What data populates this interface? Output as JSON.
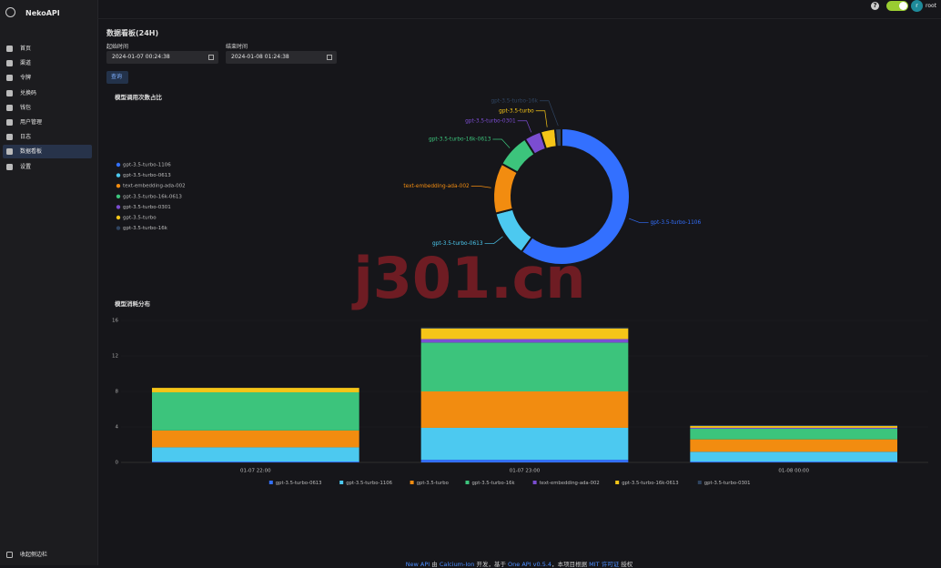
{
  "sidebar": {
    "brand": "NekoAPI",
    "menu": [
      "首页",
      "渠道",
      "令牌",
      "兑换码",
      "钱包",
      "用户管理",
      "日志",
      "数据看板",
      "设置"
    ],
    "active": 7,
    "collapse": "收起侧边栏"
  },
  "header": {
    "help": "?",
    "avatar": "r",
    "user": "root"
  },
  "page": {
    "title": "数据看板(24H)",
    "start_label": "起始时间",
    "start_value": "2024-01-07 00:24:38",
    "end_label": "结束时间",
    "end_value": "2024-01-08 01:24:38",
    "query": "查询"
  },
  "watermark": "j301.cn",
  "pie_chart": {
    "type": "pie",
    "title": "模型调用次数占比",
    "labels": [
      "gpt-3.5-turbo-1106",
      "gpt-3.5-turbo-0613",
      "text-embedding-ada-002",
      "gpt-3.5-turbo-16k-0613",
      "gpt-3.5-turbo-0301",
      "gpt-3.5-turbo",
      "gpt-3.5-turbo-16k"
    ],
    "values": [
      60,
      11,
      12,
      8,
      4,
      3.5,
      1.5
    ],
    "colors": [
      "#3370ff",
      "#4cc9f0",
      "#f28c10",
      "#3cc47c",
      "#7b4dd1",
      "#f5c518",
      "#2f4460"
    ]
  },
  "bar_chart": {
    "type": "bar",
    "title": "模型消耗分布",
    "stacked": true,
    "categories": [
      "01-07 22:00",
      "01-07 23:00",
      "01-08 00:00"
    ],
    "ylim": [
      0,
      16
    ],
    "yticks": [
      0,
      4,
      8,
      12,
      16
    ],
    "grid": true,
    "series": [
      {
        "name": "gpt-3.5-turbo-0613",
        "color": "#3370ff",
        "values": [
          0.1,
          0.3,
          0.1
        ]
      },
      {
        "name": "gpt-3.5-turbo-1106",
        "color": "#4cc9f0",
        "values": [
          1.6,
          3.6,
          1.1
        ]
      },
      {
        "name": "gpt-3.5-turbo",
        "color": "#f28c10",
        "values": [
          1.9,
          4.1,
          1.4
        ]
      },
      {
        "name": "gpt-3.5-turbo-16k",
        "color": "#3cc47c",
        "values": [
          4.3,
          5.5,
          1.2
        ]
      },
      {
        "name": "text-embedding-ada-002",
        "color": "#7b4dd1",
        "values": [
          0,
          0.4,
          0.1
        ]
      },
      {
        "name": "gpt-3.5-turbo-16k-0613",
        "color": "#f5c518",
        "values": [
          0.5,
          1.2,
          0.2
        ]
      },
      {
        "name": "gpt-3.5-turbo-0301",
        "color": "#2f4460",
        "values": [
          0,
          0.1,
          0.1
        ]
      }
    ]
  },
  "footer": {
    "parts": [
      {
        "text": "New API",
        "link": true
      },
      {
        "text": " 由 ",
        "link": false
      },
      {
        "text": "Calcium-Ion",
        "link": true
      },
      {
        "text": " 开发，基于 ",
        "link": false
      },
      {
        "text": "One API v0.5.4",
        "link": true
      },
      {
        "text": "，本项目根据 ",
        "link": false
      },
      {
        "text": "MIT 许可证",
        "link": true
      },
      {
        "text": " 授权",
        "link": false
      }
    ]
  }
}
